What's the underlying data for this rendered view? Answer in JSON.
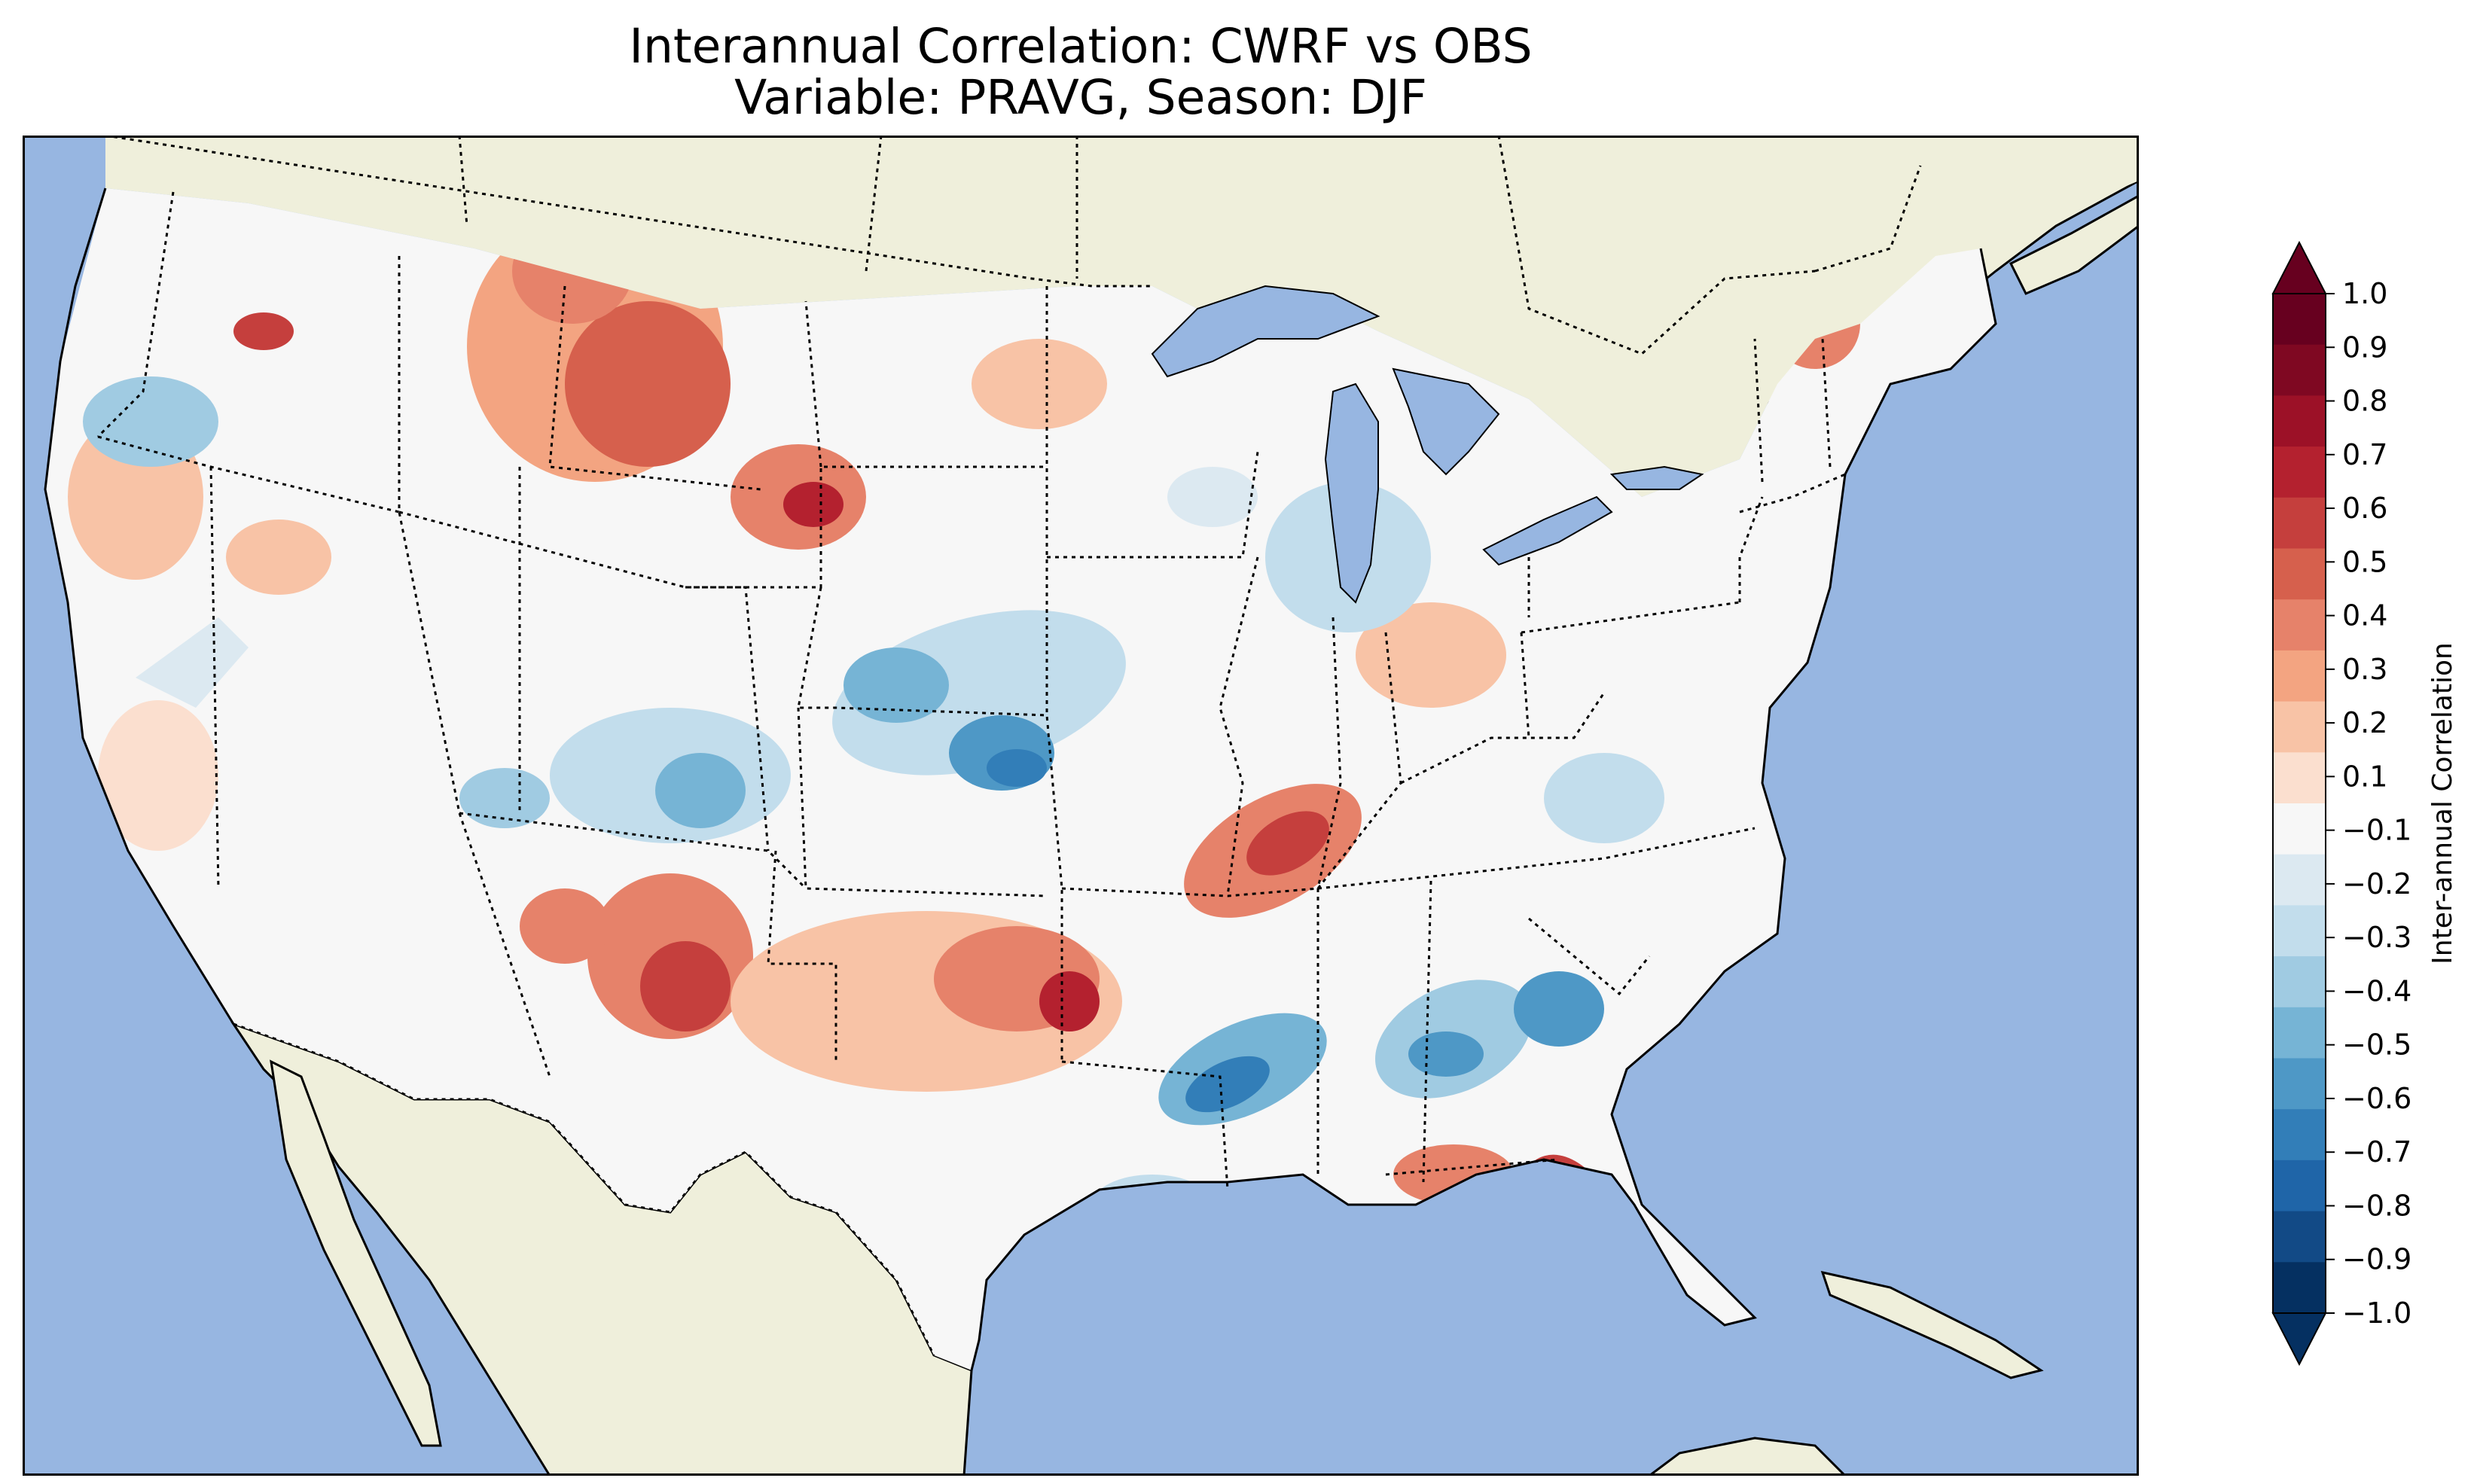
{
  "title": {
    "line1": "Interannual Correlation: CWRF vs OBS",
    "line2": "Variable: PRAVG, Season: DJF"
  },
  "colorbar": {
    "label": "Inter-annual Correlation",
    "ticks": [
      "1.0",
      "0.9",
      "0.8",
      "0.7",
      "0.6",
      "0.5",
      "0.4",
      "0.3",
      "0.2",
      "0.1",
      "−0.1",
      "−0.2",
      "−0.3",
      "−0.4",
      "−0.5",
      "−0.6",
      "−0.7",
      "−0.8",
      "−0.9",
      "−1.0"
    ],
    "colors": [
      "#67001f",
      "#7f0822",
      "#9c1127",
      "#b4212f",
      "#c53f3d",
      "#d6604d",
      "#e6826a",
      "#f3a481",
      "#f8c3a6",
      "#fbdfcf",
      "#f7f7f7",
      "#dce9f1",
      "#c2ddec",
      "#a0cbe2",
      "#76b4d5",
      "#4e98c6",
      "#327eb8",
      "#1f65a8",
      "#124a86",
      "#053061"
    ],
    "extend": "both"
  },
  "map": {
    "ocean_color": "#97b6e1",
    "land_color": "#efefdb",
    "lake_color": "#97b6e1",
    "projection": "Lambert Conformal",
    "region": "Contiguous United States",
    "field_color_high": "#b4212f",
    "field_color_low": "#1f65a8"
  }
}
